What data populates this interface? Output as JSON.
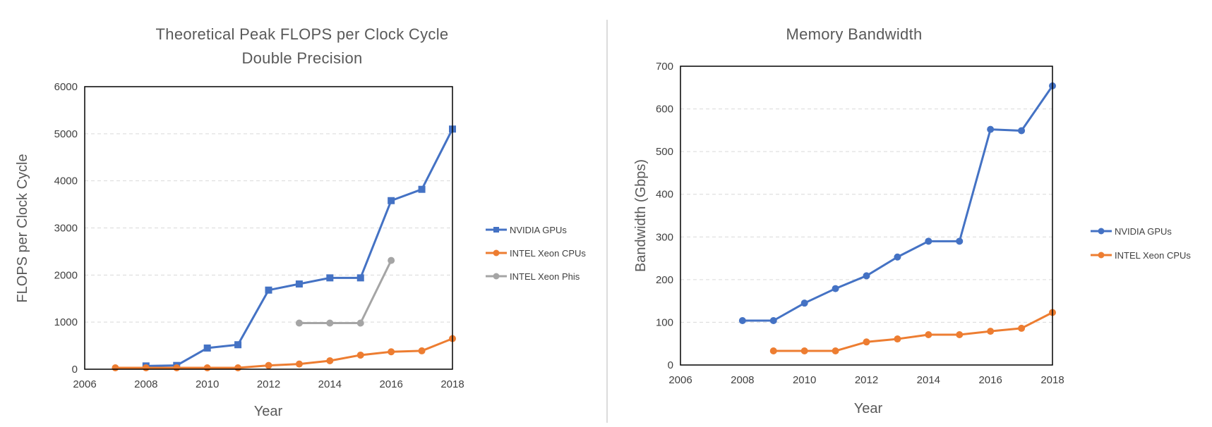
{
  "chart_data": [
    {
      "type": "line",
      "title": "Theoretical Peak FLOPS per Clock Cycle",
      "subtitle": "Double Precision",
      "xlabel": "Year",
      "ylabel": "FLOPS per Clock Cycle",
      "xlim": [
        2006,
        2018
      ],
      "ylim": [
        0,
        6000
      ],
      "xticks": [
        "2006",
        "2008",
        "2010",
        "2012",
        "2014",
        "2016",
        "2018"
      ],
      "yticks": [
        "0",
        "1000",
        "2000",
        "3000",
        "4000",
        "5000",
        "6000"
      ],
      "grid": true,
      "legend": "right",
      "series": [
        {
          "name": "NVIDIA GPUs",
          "color": "#4472C4",
          "marker": "square",
          "x": [
            2008,
            2009,
            2010,
            2011,
            2012,
            2013,
            2014,
            2015,
            2016,
            2017,
            2018
          ],
          "values": [
            70,
            80,
            450,
            520,
            1680,
            1810,
            1940,
            1940,
            3580,
            3820,
            5100
          ]
        },
        {
          "name": "INTEL Xeon CPUs",
          "color": "#ED7D31",
          "marker": "circle",
          "x": [
            2007,
            2008,
            2009,
            2010,
            2011,
            2012,
            2013,
            2014,
            2015,
            2016,
            2017,
            2018
          ],
          "values": [
            30,
            30,
            30,
            30,
            30,
            80,
            110,
            180,
            300,
            370,
            390,
            650
          ]
        },
        {
          "name": "INTEL Xeon Phis",
          "color": "#A5A5A5",
          "marker": "circle",
          "x": [
            2013,
            2014,
            2015,
            2016
          ],
          "values": [
            980,
            980,
            980,
            2310
          ]
        }
      ]
    },
    {
      "type": "line",
      "title": "Memory Bandwidth",
      "xlabel": "Year",
      "ylabel": "Bandwidth (Gbps)",
      "xlim": [
        2006,
        2018
      ],
      "ylim": [
        0,
        700
      ],
      "xticks": [
        "2006",
        "2008",
        "2010",
        "2012",
        "2014",
        "2016",
        "2018"
      ],
      "yticks": [
        "0",
        "100",
        "200",
        "300",
        "400",
        "500",
        "600",
        "700"
      ],
      "grid": true,
      "legend": "right",
      "series": [
        {
          "name": "NVIDIA GPUs",
          "color": "#4472C4",
          "marker": "circle",
          "x": [
            2008,
            2009,
            2010,
            2011,
            2012,
            2013,
            2014,
            2015,
            2016,
            2017,
            2018
          ],
          "values": [
            104,
            104,
            145,
            179,
            209,
            253,
            290,
            290,
            552,
            549,
            654
          ]
        },
        {
          "name": "INTEL Xeon CPUs",
          "color": "#ED7D31",
          "marker": "circle",
          "x": [
            2009,
            2010,
            2011,
            2012,
            2013,
            2014,
            2015,
            2016,
            2017,
            2018
          ],
          "values": [
            33,
            33,
            33,
            54,
            61,
            71,
            71,
            79,
            86,
            123
          ]
        }
      ]
    }
  ]
}
